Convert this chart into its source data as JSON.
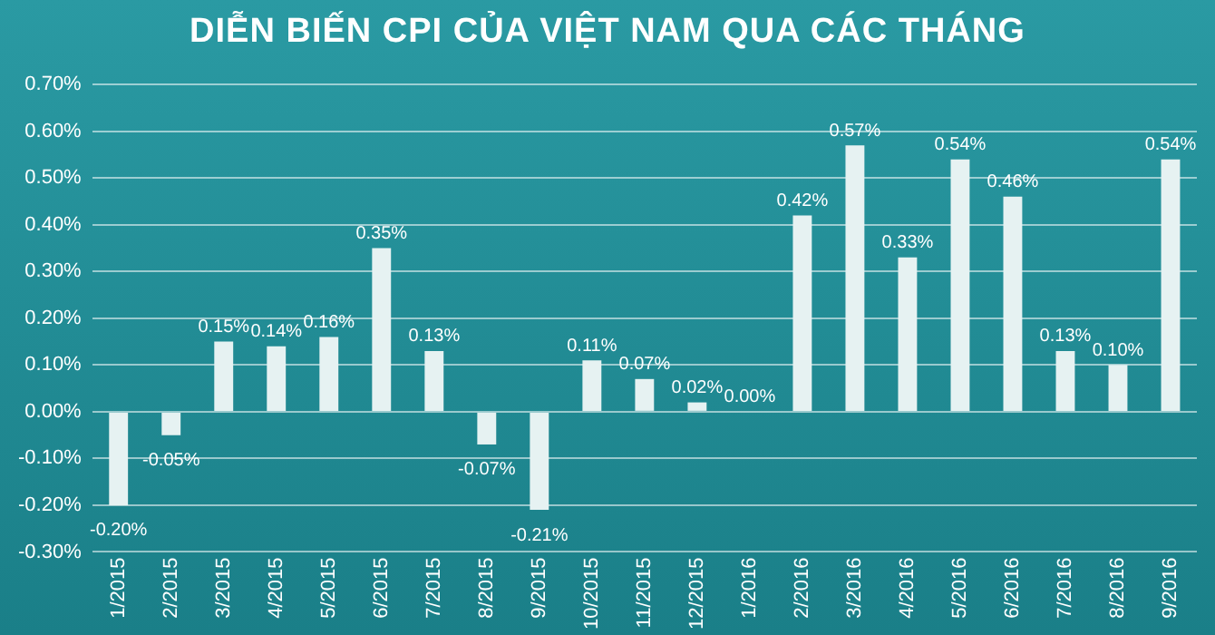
{
  "chart_data": {
    "type": "bar",
    "title": "DIỄN BIẾN CPI CỦA VIỆT NAM QUA CÁC THÁNG",
    "categories": [
      "1/2015",
      "2/2015",
      "3/2015",
      "4/2015",
      "5/2015",
      "6/2015",
      "7/2015",
      "8/2015",
      "9/2015",
      "10/2015",
      "11/2015",
      "12/2015",
      "1/2016",
      "2/2016",
      "3/2016",
      "4/2016",
      "5/2016",
      "6/2016",
      "7/2016",
      "8/2016",
      "9/2016"
    ],
    "values": [
      -0.2,
      -0.05,
      0.15,
      0.14,
      0.16,
      0.35,
      0.13,
      -0.07,
      -0.21,
      0.11,
      0.07,
      0.02,
      0.0,
      0.42,
      0.57,
      0.33,
      0.54,
      0.46,
      0.13,
      0.1,
      0.54
    ],
    "value_labels": [
      "-0.20%",
      "-0.05%",
      "0.15%",
      "0.14%",
      "0.16%",
      "0.35%",
      "0.13%",
      "-0.07%",
      "-0.21%",
      "0.11%",
      "0.07%",
      "0.02%",
      "0.00%",
      "0.42%",
      "0.57%",
      "0.33%",
      "0.54%",
      "0.46%",
      "0.13%",
      "0.10%",
      "0.54%"
    ],
    "color": "#e6f2f2",
    "ylim": [
      -0.3,
      0.7
    ],
    "yticks": [
      {
        "value": -0.3,
        "label": "-0.30%"
      },
      {
        "value": -0.2,
        "label": "-0.20%"
      },
      {
        "value": -0.1,
        "label": "-0.10%"
      },
      {
        "value": 0,
        "label": "0.00%"
      },
      {
        "value": 0.1,
        "label": "0.10%"
      },
      {
        "value": 0.2,
        "label": "0.20%"
      },
      {
        "value": 0.3,
        "label": "0.30%"
      },
      {
        "value": 0.4,
        "label": "0.40%"
      },
      {
        "value": 0.5,
        "label": "0.50%"
      },
      {
        "value": 0.6,
        "label": "0.60%"
      },
      {
        "value": 0.7,
        "label": "0.70%"
      }
    ],
    "grid": "y"
  }
}
